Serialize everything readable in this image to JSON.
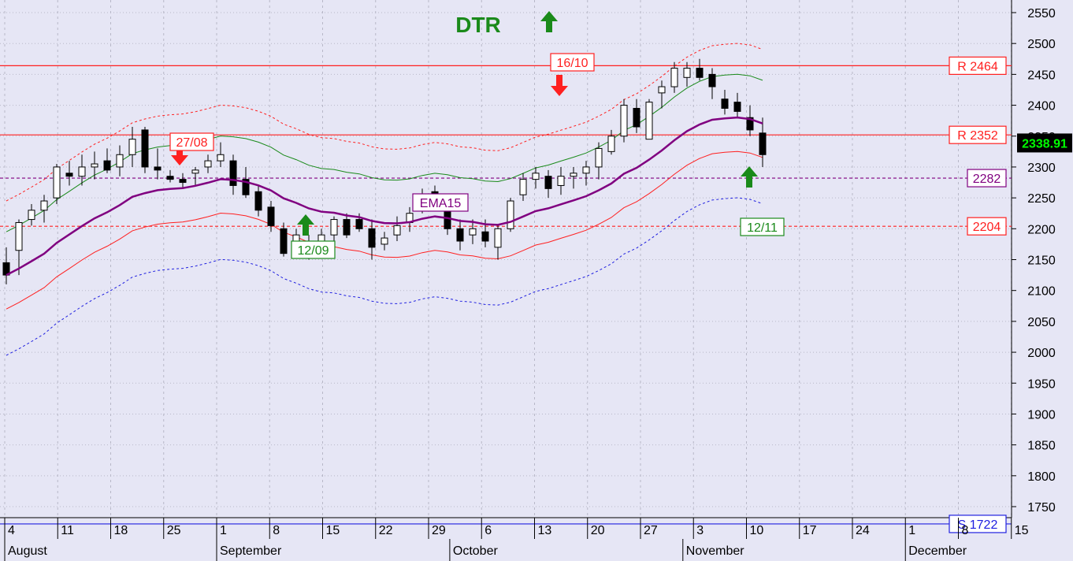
{
  "chart_data": {
    "type": "candlestick",
    "title": "DTR",
    "ylim": [
      1705,
      2565
    ],
    "y_ticks": [
      1750,
      1800,
      1850,
      1900,
      1950,
      2000,
      2050,
      2100,
      2150,
      2200,
      2250,
      2300,
      2350,
      2400,
      2450,
      2500,
      2550
    ],
    "x_day_labels": [
      {
        "label": "4",
        "i": 0
      },
      {
        "label": "11",
        "i": 5
      },
      {
        "label": "18",
        "i": 10
      },
      {
        "label": "25",
        "i": 15
      },
      {
        "label": "1",
        "i": 20
      },
      {
        "label": "8",
        "i": 25
      },
      {
        "label": "15",
        "i": 30
      },
      {
        "label": "22",
        "i": 35
      },
      {
        "label": "29",
        "i": 40
      },
      {
        "label": "6",
        "i": 45
      },
      {
        "label": "13",
        "i": 50
      },
      {
        "label": "20",
        "i": 55
      },
      {
        "label": "27",
        "i": 60
      },
      {
        "label": "3",
        "i": 65
      },
      {
        "label": "10",
        "i": 70
      },
      {
        "label": "17",
        "i": 75
      },
      {
        "label": "24",
        "i": 80
      },
      {
        "label": "1",
        "i": 85
      },
      {
        "label": "8",
        "i": 90
      },
      {
        "label": "15",
        "i": 95
      }
    ],
    "x_month_labels": [
      {
        "label": "August",
        "i": 0
      },
      {
        "label": "September",
        "i": 20
      },
      {
        "label": "October",
        "i": 42
      },
      {
        "label": "November",
        "i": 64
      },
      {
        "label": "December",
        "i": 85
      }
    ],
    "candles": [
      [
        2145,
        2170,
        2110,
        2125
      ],
      [
        2165,
        2215,
        2125,
        2210
      ],
      [
        2215,
        2240,
        2205,
        2230
      ],
      [
        2230,
        2255,
        2210,
        2245
      ],
      [
        2250,
        2305,
        2240,
        2300
      ],
      [
        2290,
        2310,
        2270,
        2285
      ],
      [
        2285,
        2320,
        2270,
        2300
      ],
      [
        2300,
        2325,
        2280,
        2305
      ],
      [
        2310,
        2330,
        2290,
        2295
      ],
      [
        2300,
        2335,
        2285,
        2320
      ],
      [
        2320,
        2365,
        2300,
        2345
      ],
      [
        2360,
        2365,
        2290,
        2300
      ],
      [
        2300,
        2330,
        2280,
        2295
      ],
      [
        2285,
        2295,
        2275,
        2280
      ],
      [
        2280,
        2290,
        2265,
        2275
      ],
      [
        2290,
        2300,
        2270,
        2295
      ],
      [
        2300,
        2320,
        2290,
        2310
      ],
      [
        2310,
        2340,
        2300,
        2320
      ],
      [
        2310,
        2320,
        2255,
        2270
      ],
      [
        2280,
        2300,
        2250,
        2255
      ],
      [
        2260,
        2270,
        2220,
        2230
      ],
      [
        2235,
        2245,
        2195,
        2205
      ],
      [
        2200,
        2210,
        2155,
        2160
      ],
      [
        2165,
        2200,
        2155,
        2190
      ],
      [
        2165,
        2190,
        2150,
        2170
      ],
      [
        2175,
        2200,
        2160,
        2190
      ],
      [
        2190,
        2220,
        2180,
        2215
      ],
      [
        2215,
        2225,
        2185,
        2190
      ],
      [
        2215,
        2225,
        2195,
        2200
      ],
      [
        2200,
        2215,
        2150,
        2170
      ],
      [
        2175,
        2195,
        2165,
        2185
      ],
      [
        2190,
        2220,
        2180,
        2205
      ],
      [
        2210,
        2235,
        2195,
        2225
      ],
      [
        2235,
        2265,
        2225,
        2255
      ],
      [
        2260,
        2270,
        2230,
        2245
      ],
      [
        2240,
        2250,
        2190,
        2200
      ],
      [
        2200,
        2215,
        2165,
        2180
      ],
      [
        2190,
        2215,
        2175,
        2200
      ],
      [
        2195,
        2215,
        2170,
        2180
      ],
      [
        2170,
        2205,
        2150,
        2200
      ],
      [
        2200,
        2250,
        2195,
        2245
      ],
      [
        2255,
        2290,
        2245,
        2280
      ],
      [
        2280,
        2300,
        2265,
        2290
      ],
      [
        2285,
        2295,
        2250,
        2265
      ],
      [
        2270,
        2300,
        2255,
        2285
      ],
      [
        2285,
        2300,
        2265,
        2290
      ],
      [
        2290,
        2310,
        2270,
        2300
      ],
      [
        2300,
        2340,
        2280,
        2330
      ],
      [
        2325,
        2360,
        2320,
        2350
      ],
      [
        2350,
        2410,
        2340,
        2400
      ],
      [
        2395,
        2410,
        2355,
        2365
      ],
      [
        2345,
        2410,
        2345,
        2405
      ],
      [
        2420,
        2440,
        2395,
        2430
      ],
      [
        2430,
        2470,
        2420,
        2460
      ],
      [
        2445,
        2470,
        2430,
        2460
      ],
      [
        2460,
        2475,
        2440,
        2445
      ],
      [
        2450,
        2460,
        2410,
        2430
      ],
      [
        2410,
        2425,
        2385,
        2395
      ],
      [
        2405,
        2420,
        2380,
        2390
      ],
      [
        2380,
        2400,
        2350,
        2360
      ],
      [
        2355,
        2380,
        2300,
        2320
      ]
    ],
    "note": "Resistance R 2464 and R 2352, support S 1722, levels 2282 and 2204; last price 2338.91"
  },
  "labels": {
    "title": "DTR",
    "r1": "R 2464",
    "r2": "R 2352",
    "s1": "S 1722",
    "ema_level": "2282",
    "dashed_level": "2204",
    "last_price": "2338.91",
    "ema": "EMA15",
    "sig1": "27/08",
    "sig2": "12/09",
    "sig3": "16/10",
    "sig4": "12/11"
  }
}
